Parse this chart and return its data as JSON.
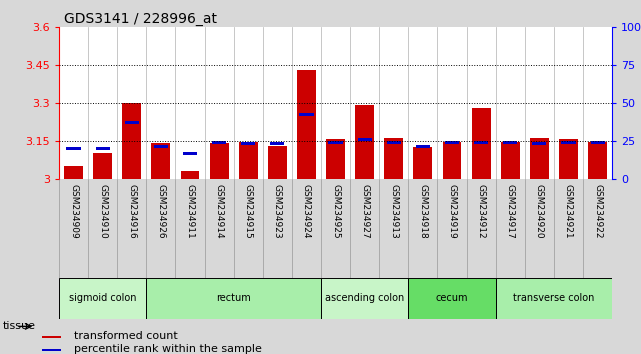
{
  "title": "GDS3141 / 228996_at",
  "samples": [
    "GSM234909",
    "GSM234910",
    "GSM234916",
    "GSM234926",
    "GSM234911",
    "GSM234914",
    "GSM234915",
    "GSM234923",
    "GSM234924",
    "GSM234925",
    "GSM234927",
    "GSM234913",
    "GSM234918",
    "GSM234919",
    "GSM234912",
    "GSM234917",
    "GSM234920",
    "GSM234921",
    "GSM234922"
  ],
  "red_values": [
    3.05,
    3.1,
    3.3,
    3.14,
    3.03,
    3.14,
    3.145,
    3.13,
    3.43,
    3.155,
    3.29,
    3.16,
    3.125,
    3.145,
    3.28,
    3.145,
    3.16,
    3.155,
    3.145
  ],
  "blue_values": [
    3.115,
    3.113,
    3.215,
    3.123,
    3.095,
    3.138,
    3.133,
    3.132,
    3.248,
    3.138,
    3.148,
    3.138,
    3.12,
    3.138,
    3.138,
    3.138,
    3.132,
    3.138,
    3.138
  ],
  "ylim_left": [
    3.0,
    3.6
  ],
  "yticks_left": [
    3.0,
    3.15,
    3.3,
    3.45,
    3.6
  ],
  "ytick_labels_left": [
    "3",
    "3.15",
    "3.3",
    "3.45",
    "3.6"
  ],
  "yticks_right": [
    0,
    25,
    50,
    75,
    100
  ],
  "ytick_labels_right": [
    "0",
    "25",
    "50",
    "75",
    "100%"
  ],
  "hlines": [
    3.15,
    3.3,
    3.45
  ],
  "tissue_groups": [
    {
      "label": "sigmoid colon",
      "start": 0,
      "end": 3,
      "color": "#c8f5c8"
    },
    {
      "label": "rectum",
      "start": 3,
      "end": 9,
      "color": "#a8eeaa"
    },
    {
      "label": "ascending colon",
      "start": 9,
      "end": 12,
      "color": "#c8f5c8"
    },
    {
      "label": "cecum",
      "start": 12,
      "end": 15,
      "color": "#66dd66"
    },
    {
      "label": "transverse colon",
      "start": 15,
      "end": 19,
      "color": "#a8eeaa"
    }
  ],
  "bar_color_red": "#cc0000",
  "bar_color_blue": "#0000cc",
  "bar_width": 0.65,
  "background_color": "#d8d8d8",
  "plot_background": "#ffffff",
  "xlabel_bg": "#c0c0c0",
  "col_sep_color": "#b0b0b0"
}
